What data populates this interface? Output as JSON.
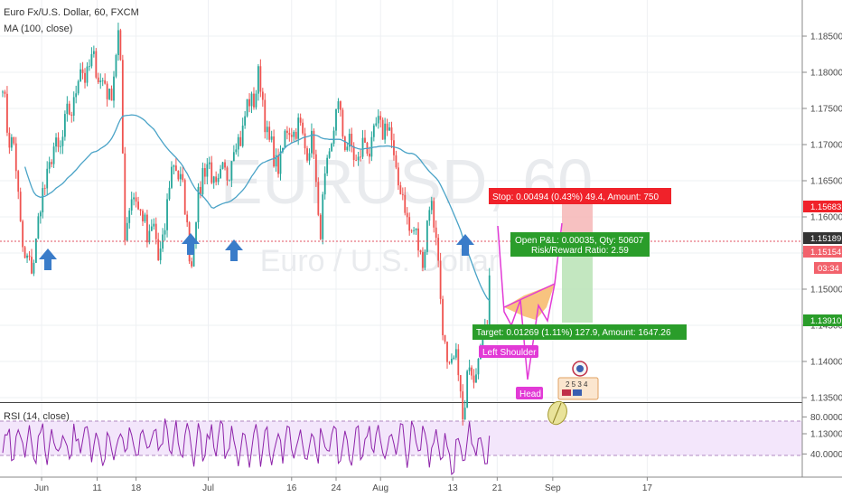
{
  "header": {
    "symbol_title": "Euro Fx/U.S. Dollar, 60, FXCM",
    "ma_label": "MA (100, close)",
    "rsi_label": "RSI (14, close)"
  },
  "watermark": {
    "ticker": "EURUSD, 60",
    "name": "Euro / U.S. Dollar"
  },
  "colors": {
    "bull": "#26a69a",
    "bear": "#ef5350",
    "ma": "#4aa3c7",
    "rsi": "#8e24aa",
    "arrow": "#3a7cc9",
    "stop": "#f0222a",
    "target": "#2a9d2a",
    "pattern": "#e23ad6"
  },
  "price_scale": {
    "ticks": [
      "1.18500",
      "1.18000",
      "1.17500",
      "1.17000",
      "1.16500",
      "1.16000",
      "1.15500",
      "1.15000",
      "1.14500",
      "1.14000",
      "1.13500",
      "1.13000"
    ],
    "badges": {
      "stop_price": "1.15683",
      "last_price": "1.15189",
      "entry_price": "1.15154",
      "countdown": "03:34",
      "target_price": "1.13910"
    }
  },
  "rsi_scale": {
    "ticks": [
      "80.0000",
      "40.0000"
    ]
  },
  "time_axis": {
    "labels": [
      "Jun",
      "11",
      "18",
      "Jul",
      "16",
      "24",
      "Aug",
      "13",
      "21",
      "Sep",
      "17"
    ]
  },
  "position": {
    "stop_text": "Stop: 0.00494 (0.43%) 49.4, Amount: 750",
    "pnl_text": "Open P&L: 0.00035, Qty: 50607",
    "rr_text": "Risk/Reward Ratio: 2.59",
    "target_text": "Target: 0.01269 (1.11%) 127.9, Amount: 1647.26"
  },
  "pattern_labels": {
    "left_shoulder": "Left Shoulder",
    "head": "Head"
  },
  "events": {
    "digits": "2 5 3 4"
  },
  "chart_data": [
    {
      "type": "candlestick",
      "title": "Euro Fx/U.S. Dollar, 60, FXCM",
      "ylim": [
        1.127,
        1.189
      ],
      "x_range": [
        "May 24",
        "Sep 26"
      ],
      "grid": true,
      "ma_period": 100,
      "anchors": [
        {
          "date": "May 24",
          "close": 1.1778
        },
        {
          "date": "May 25",
          "close": 1.1722
        },
        {
          "date": "May 26",
          "close": 1.169
        },
        {
          "date": "May 28",
          "close": 1.1535
        },
        {
          "date": "May 29",
          "close": 1.1524
        },
        {
          "date": "Jun 1",
          "close": 1.1665
        },
        {
          "date": "Jun 4",
          "close": 1.1715
        },
        {
          "date": "Jun 7",
          "close": 1.18
        },
        {
          "date": "Jun 10",
          "close": 1.181
        },
        {
          "date": "Jun 12",
          "close": 1.176
        },
        {
          "date": "Jun 14",
          "close": 1.185
        },
        {
          "date": "Jun 15",
          "close": 1.159
        },
        {
          "date": "Jun 17",
          "close": 1.1635
        },
        {
          "date": "Jun 19",
          "close": 1.1565
        },
        {
          "date": "Jun 20",
          "close": 1.16
        },
        {
          "date": "Jun 21",
          "close": 1.153
        },
        {
          "date": "Jun 24",
          "close": 1.169
        },
        {
          "date": "Jun 26",
          "close": 1.16
        },
        {
          "date": "Jun 27",
          "close": 1.154
        },
        {
          "date": "Jun 29",
          "close": 1.1675
        },
        {
          "date": "Jul 2",
          "close": 1.164
        },
        {
          "date": "Jul 5",
          "close": 1.17
        },
        {
          "date": "Jul 9",
          "close": 1.179
        },
        {
          "date": "Jul 12",
          "close": 1.1665
        },
        {
          "date": "Jul 15",
          "close": 1.173
        },
        {
          "date": "Jul 19",
          "close": 1.169
        },
        {
          "date": "Jul 20",
          "close": 1.158
        },
        {
          "date": "Jul 23",
          "close": 1.175
        },
        {
          "date": "Jul 26",
          "close": 1.168
        },
        {
          "date": "Jul 29",
          "close": 1.17
        },
        {
          "date": "Aug 1",
          "close": 1.1735
        },
        {
          "date": "Aug 4",
          "close": 1.162
        },
        {
          "date": "Aug 7",
          "close": 1.155
        },
        {
          "date": "Aug 8",
          "close": 1.156
        },
        {
          "date": "Aug 9",
          "close": 1.162
        },
        {
          "date": "Aug 10",
          "close": 1.159
        },
        {
          "date": "Aug 11",
          "close": 1.145
        },
        {
          "date": "Aug 12",
          "close": 1.14
        },
        {
          "date": "Aug 13",
          "close": 1.1385
        },
        {
          "date": "Aug 14",
          "close": 1.14
        },
        {
          "date": "Aug 15",
          "close": 1.1305
        },
        {
          "date": "Aug 16",
          "close": 1.14
        },
        {
          "date": "Aug 17",
          "close": 1.1395
        },
        {
          "date": "Aug 18",
          "close": 1.142
        },
        {
          "date": "Aug 19",
          "close": 1.145
        },
        {
          "date": "Aug 20",
          "close": 1.1519
        }
      ]
    },
    {
      "type": "line",
      "title": "RSI (14, close)",
      "ylim": [
        15,
        95
      ],
      "band": [
        30,
        70
      ],
      "levels": [
        80,
        40
      ]
    }
  ]
}
